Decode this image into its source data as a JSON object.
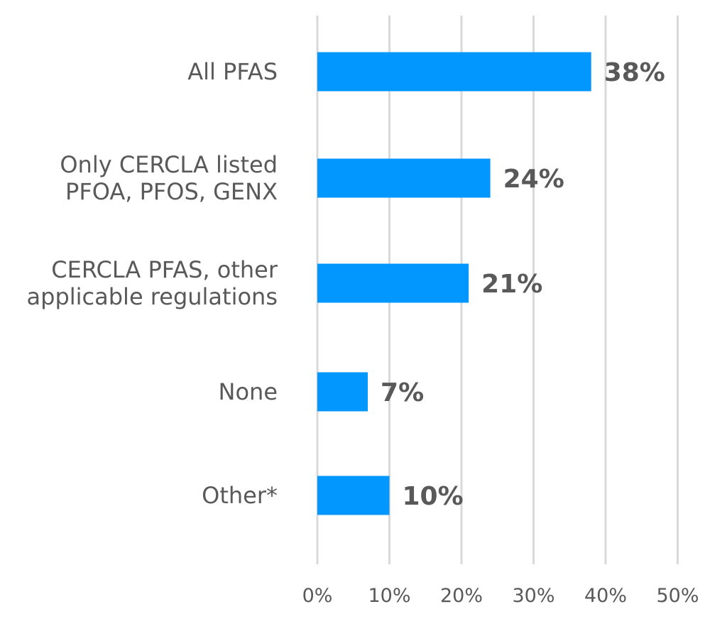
{
  "chart_data": {
    "type": "bar",
    "orientation": "horizontal",
    "categories": [
      [
        "All PFAS"
      ],
      [
        "Only CERCLA listed",
        "PFOA, PFOS, GENX"
      ],
      [
        "CERCLA PFAS, other",
        "applicable regulations"
      ],
      [
        "None"
      ],
      [
        "Other*"
      ]
    ],
    "values": [
      38,
      24,
      21,
      7,
      10
    ],
    "value_labels": [
      "38%",
      "24%",
      "21%",
      "7%",
      "10%"
    ],
    "xlim": [
      0,
      50
    ],
    "xticks": [
      0,
      10,
      20,
      30,
      40,
      50
    ],
    "xtick_labels": [
      "0%",
      "10%",
      "20%",
      "30%",
      "40%",
      "50%"
    ],
    "grid": "vertical",
    "legend": "none",
    "bar_color": "#0296FF",
    "text_color": "#595959",
    "grid_color": "#D9D9D9"
  }
}
